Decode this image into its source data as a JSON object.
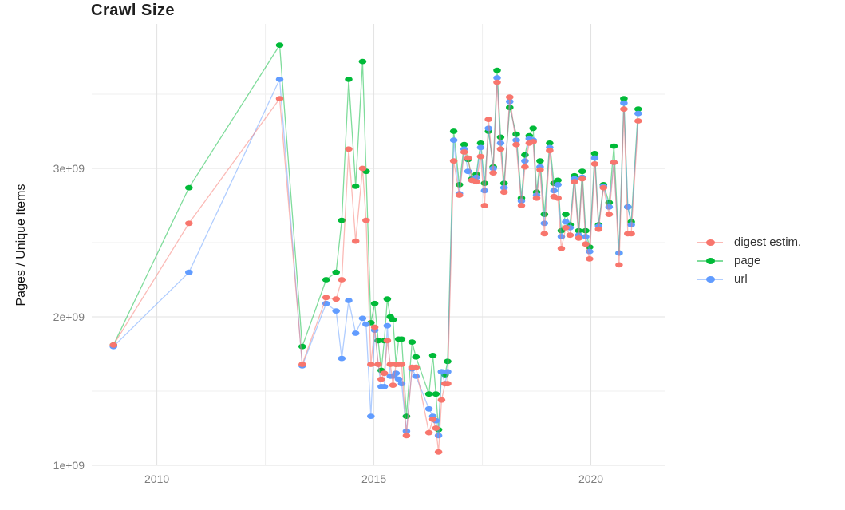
{
  "chart_data": {
    "type": "line",
    "title": "Crawl Size",
    "ylabel": "Pages / Unique Items",
    "xlabel": "",
    "x_range": [
      2008.5,
      2021.7
    ],
    "y_range_e9": [
      1.0,
      3.973
    ],
    "grid": true,
    "legend_position": "right",
    "x_ticks": {
      "major": [
        2010,
        2015,
        2020
      ],
      "minor": [
        2012.5,
        2017.5
      ],
      "labels": [
        "2010",
        "2015",
        "2020"
      ]
    },
    "y_ticks": {
      "major_e9": [
        1,
        2,
        3
      ],
      "minor_e9": [
        1.5,
        2.5,
        3.5
      ],
      "labels": [
        "1e+09",
        "2e+09",
        "3e+09"
      ]
    },
    "x": [
      2009.0,
      2010.74,
      2012.83,
      2013.35,
      2013.9,
      2014.13,
      2014.26,
      2014.42,
      2014.58,
      2014.74,
      2014.82,
      2014.93,
      2015.02,
      2015.1,
      2015.17,
      2015.24,
      2015.31,
      2015.38,
      2015.44,
      2015.51,
      2015.57,
      2015.64,
      2015.75,
      2015.88,
      2015.97,
      2016.27,
      2016.36,
      2016.43,
      2016.49,
      2016.56,
      2016.64,
      2016.7,
      2016.84,
      2016.97,
      2017.08,
      2017.17,
      2017.26,
      2017.36,
      2017.46,
      2017.55,
      2017.64,
      2017.75,
      2017.84,
      2017.92,
      2018.0,
      2018.13,
      2018.28,
      2018.4,
      2018.48,
      2018.58,
      2018.67,
      2018.75,
      2018.83,
      2018.93,
      2019.05,
      2019.15,
      2019.24,
      2019.32,
      2019.42,
      2019.52,
      2019.62,
      2019.72,
      2019.8,
      2019.88,
      2019.97,
      2020.09,
      2020.18,
      2020.29,
      2020.42,
      2020.53,
      2020.65,
      2020.76,
      2020.85,
      2020.93,
      2021.09
    ],
    "series": [
      {
        "name": "digest estim.",
        "key": "digest",
        "color": "#F8766D",
        "values_e9": [
          1.81,
          2.63,
          3.47,
          1.68,
          2.13,
          2.12,
          2.25,
          3.13,
          2.51,
          3.0,
          2.65,
          1.68,
          1.93,
          1.68,
          1.58,
          1.62,
          1.84,
          1.68,
          1.54,
          1.68,
          1.68,
          1.68,
          1.2,
          1.66,
          1.66,
          1.22,
          1.31,
          1.25,
          1.09,
          1.44,
          1.55,
          1.55,
          3.05,
          2.82,
          3.11,
          3.07,
          2.92,
          2.91,
          3.08,
          2.75,
          3.33,
          2.97,
          3.58,
          3.13,
          2.84,
          3.48,
          3.16,
          2.75,
          3.01,
          3.17,
          3.18,
          2.8,
          2.99,
          2.56,
          3.12,
          2.81,
          2.8,
          2.46,
          2.6,
          2.55,
          2.91,
          2.53,
          2.93,
          2.49,
          2.39,
          3.03,
          2.59,
          2.87,
          2.69,
          3.04,
          2.35,
          3.4,
          2.56,
          2.56,
          3.32
        ]
      },
      {
        "name": "page",
        "key": "page",
        "color": "#00BA38",
        "values_e9": [
          1.81,
          2.87,
          3.83,
          1.8,
          2.25,
          2.3,
          2.65,
          3.6,
          2.88,
          3.72,
          2.98,
          1.96,
          2.09,
          1.84,
          1.64,
          1.84,
          2.12,
          2.0,
          1.98,
          1.68,
          1.85,
          1.85,
          1.33,
          1.83,
          1.73,
          1.48,
          1.74,
          1.48,
          1.24,
          1.63,
          1.61,
          1.7,
          3.25,
          2.89,
          3.16,
          3.06,
          2.93,
          2.96,
          3.17,
          2.9,
          3.25,
          3.01,
          3.66,
          3.21,
          2.9,
          3.41,
          3.23,
          2.8,
          3.09,
          3.22,
          3.27,
          2.84,
          3.05,
          2.69,
          3.17,
          2.9,
          2.92,
          2.58,
          2.69,
          2.62,
          2.95,
          2.58,
          2.98,
          2.58,
          2.47,
          3.1,
          2.62,
          2.89,
          2.77,
          3.15,
          2.43,
          3.47,
          2.74,
          2.64,
          3.4
        ]
      },
      {
        "name": "url",
        "key": "url",
        "color": "#619CFF",
        "values_e9": [
          1.8,
          2.3,
          3.6,
          1.67,
          2.09,
          2.04,
          1.72,
          2.11,
          1.89,
          1.99,
          1.95,
          1.33,
          1.91,
          1.68,
          1.53,
          1.53,
          1.94,
          1.6,
          1.6,
          1.62,
          1.58,
          1.55,
          1.23,
          1.65,
          1.6,
          1.38,
          1.33,
          1.3,
          1.2,
          1.63,
          1.55,
          1.63,
          3.19,
          2.83,
          3.13,
          2.98,
          2.92,
          2.94,
          3.14,
          2.85,
          3.27,
          3.0,
          3.61,
          3.17,
          2.87,
          3.45,
          3.19,
          2.78,
          3.05,
          3.2,
          3.19,
          2.82,
          3.01,
          2.63,
          3.14,
          2.85,
          2.89,
          2.54,
          2.64,
          2.6,
          2.93,
          2.55,
          2.94,
          2.54,
          2.44,
          3.07,
          2.61,
          2.88,
          2.74,
          3.04,
          2.43,
          3.44,
          2.74,
          2.62,
          3.37
        ]
      }
    ],
    "draw_order": [
      "page",
      "url",
      "digest"
    ]
  },
  "legend": {
    "items": [
      {
        "label": "digest estim.",
        "color": "#F8766D"
      },
      {
        "label": "page",
        "color": "#00BA38"
      },
      {
        "label": "url",
        "color": "#619CFF"
      }
    ]
  }
}
